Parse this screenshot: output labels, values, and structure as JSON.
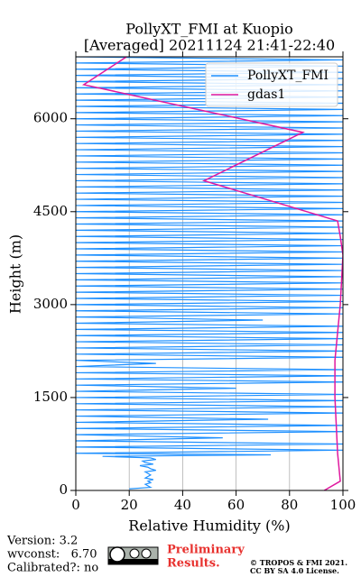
{
  "chart_data": {
    "type": "line",
    "orientation": "horizontal",
    "title": "PollyXT_FMI at Kuopio",
    "subtitle": "[Averaged] 20211124 21:41-22:40",
    "x_label": "Relative Humidity (%)",
    "y_label": "Height (m)",
    "xlim": [
      0,
      100
    ],
    "xticks": [
      0,
      20,
      40,
      60,
      80,
      100
    ],
    "ylim": [
      0,
      7000
    ],
    "yticks": [
      0,
      1500,
      3000,
      4500,
      6000
    ],
    "grid": true,
    "legend": "upper right",
    "series": [
      {
        "name": "PollyXT_FMI",
        "color": "#1e90ff",
        "heights": [
          25,
          50,
          75,
          100,
          125,
          150,
          175,
          200,
          225,
          250,
          275,
          300,
          325,
          350,
          375,
          400,
          425,
          450,
          475,
          500,
          525,
          550,
          575,
          600,
          650,
          700,
          750,
          800,
          850,
          900,
          950,
          1000,
          1050,
          1100,
          1150,
          1200,
          1250,
          1300,
          1350,
          1400,
          1450,
          1500,
          1550,
          1600,
          1650,
          1700,
          1750,
          1800,
          1850,
          1900,
          1950,
          2000,
          2050,
          2100,
          2150,
          2200,
          2250,
          2300,
          2350,
          2400,
          2450,
          2500,
          2550,
          2600,
          2650,
          2700,
          2750,
          2800,
          2850,
          2900,
          2950,
          3000,
          3050,
          3100,
          3150,
          3200,
          3250,
          3300,
          3350,
          3400,
          3450,
          3500,
          3550,
          3600,
          3650,
          3700,
          3750,
          3800,
          3850,
          3900,
          3950,
          4000,
          4050,
          4100,
          4150,
          4200,
          4250,
          4300,
          4350,
          4400,
          4450,
          4500,
          4550,
          4600,
          4650,
          4700,
          4750,
          4800,
          4850,
          4900,
          4950,
          5000,
          5050,
          5100,
          5150,
          5200,
          5250,
          5300,
          5350,
          5400,
          5450,
          5500,
          5550,
          5600,
          5650,
          5700,
          5750,
          5800,
          5850,
          5900,
          5950,
          6000,
          6050,
          6100,
          6150,
          6200,
          6250,
          6300,
          6350,
          6400,
          6450,
          6500,
          6550,
          6600,
          6650,
          6700,
          6750,
          6800,
          6850,
          6900,
          6950,
          7000
        ],
        "values": [
          20,
          28,
          27,
          26,
          28,
          27,
          29,
          26,
          27,
          28,
          27,
          26,
          30,
          28,
          27,
          24,
          29,
          26,
          25,
          30,
          28,
          10,
          73,
          0,
          100,
          0,
          100,
          0,
          55,
          0,
          100,
          0,
          100,
          0,
          72,
          0,
          100,
          0,
          100,
          0,
          100,
          0,
          100,
          0,
          60,
          0,
          100,
          0,
          100,
          0,
          100,
          0,
          30,
          0,
          100,
          0,
          100,
          0,
          100,
          0,
          100,
          0,
          100,
          0,
          100,
          0,
          70,
          0,
          100,
          0,
          100,
          0,
          100,
          0,
          100,
          0,
          100,
          0,
          100,
          0,
          100,
          0,
          100,
          0,
          100,
          0,
          100,
          0,
          100,
          0,
          100,
          0,
          100,
          0,
          100,
          0,
          100,
          0,
          100,
          0,
          100,
          0,
          100,
          0,
          100,
          0,
          100,
          0,
          100,
          0,
          100,
          0,
          100,
          0,
          100,
          0,
          100,
          0,
          100,
          0,
          100,
          0,
          100,
          0,
          100,
          0,
          100,
          0,
          100,
          0,
          100,
          0,
          100,
          0,
          100,
          0,
          100,
          0,
          100,
          0,
          100,
          0,
          100,
          0,
          100,
          0,
          100,
          0,
          100,
          0,
          100,
          0
        ]
      },
      {
        "name": "gdas1",
        "color": "#e0199f",
        "heights": [
          0,
          150,
          600,
          1500,
          2100,
          3000,
          3800,
          4100,
          4350,
          5000,
          5780,
          6550,
          7000
        ],
        "values": [
          93,
          99,
          98,
          97,
          97,
          99,
          100,
          99,
          98,
          48,
          85,
          3,
          19
        ]
      }
    ]
  },
  "footer": {
    "version": "Version: 3.2",
    "wvconst": "wvconst:   6.70",
    "calibrated": "Calibrated?: no",
    "preliminary": [
      "Preliminary",
      "Results."
    ],
    "copyright": [
      "© TROPOS & FMI 2021.",
      "CC BY SA 4.0 License."
    ]
  }
}
